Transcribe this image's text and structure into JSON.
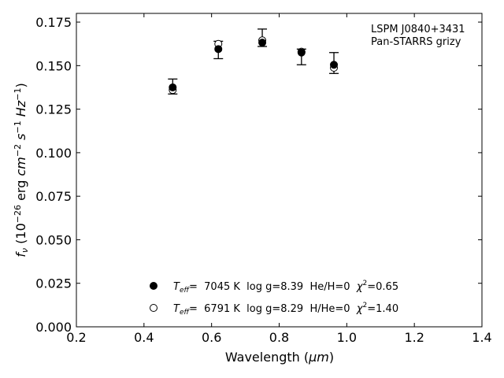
{
  "chart_data": {
    "type": "scatter",
    "xlabel_main": "Wavelength (",
    "xlabel_unit": "μm",
    "xlabel_end": ")",
    "ylabel_sym": "f",
    "ylabel_sub": "ν",
    "ylabel_open": " (10",
    "ylabel_exp1": "−26",
    "ylabel_mid1": " erg ",
    "ylabel_cm": "cm",
    "ylabel_exp2": "−2",
    "ylabel_s": " s",
    "ylabel_exp3": "−1",
    "ylabel_hz": " Hz",
    "ylabel_exp4": "−1",
    "ylabel_close": ")",
    "xlim": [
      0.2,
      1.4
    ],
    "ylim": [
      0.0,
      0.18
    ],
    "x_ticks": [
      0.2,
      0.4,
      0.6,
      0.8,
      1.0,
      1.2,
      1.4
    ],
    "x_tick_labels": [
      "0.2",
      "0.4",
      "0.6",
      "0.8",
      "1.0",
      "1.2",
      "1.4"
    ],
    "y_ticks": [
      0.0,
      0.025,
      0.05,
      0.075,
      0.1,
      0.125,
      0.15,
      0.175
    ],
    "y_tick_labels": [
      "0.000",
      "0.025",
      "0.050",
      "0.075",
      "0.100",
      "0.125",
      "0.150",
      "0.175"
    ],
    "annotation_lines": [
      "LSPM J0840+3431",
      "Pan-STARRS grizy"
    ],
    "observed": {
      "x": [
        0.485,
        0.62,
        0.75,
        0.866,
        0.962
      ],
      "y": [
        0.138,
        0.159,
        0.166,
        0.155,
        0.1515
      ],
      "err": [
        0.0043,
        0.005,
        0.005,
        0.0045,
        0.006
      ]
    },
    "series": [
      {
        "marker": "filled",
        "x": [
          0.485,
          0.62,
          0.75,
          0.866,
          0.962
        ],
        "y": [
          0.1375,
          0.1595,
          0.1632,
          0.1575,
          0.1505
        ],
        "legend": {
          "t": "T",
          "sub": "eff",
          "rest": "=  7045 K  log g=8.39  He/H=0  ",
          "chi": "χ",
          "sup": "2",
          "val": "=0.65"
        }
      },
      {
        "marker": "open",
        "x": [
          0.485,
          0.62,
          0.75,
          0.866,
          0.962
        ],
        "y": [
          0.136,
          0.1625,
          0.1645,
          0.158,
          0.1488
        ],
        "legend": {
          "t": "T",
          "sub": "eff",
          "rest": "=  6791 K  log g=8.29  H/He=0  ",
          "chi": "χ",
          "sup": "2",
          "val": "=1.40"
        }
      }
    ]
  }
}
